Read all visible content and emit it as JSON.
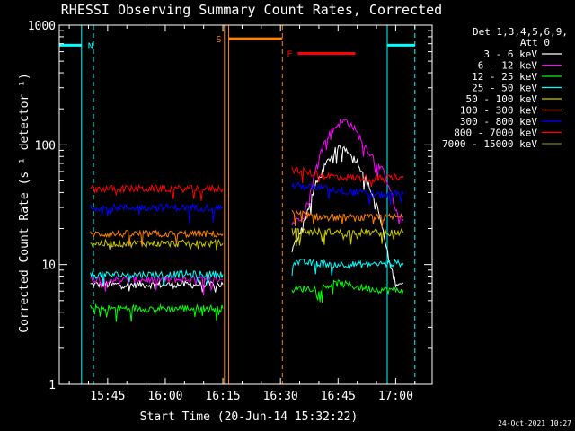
{
  "chart_data": {
    "type": "line",
    "title": "RHESSI Observing Summary Count Rates, Corrected",
    "xlabel": "Start Time (20-Jun-14 15:32:22)",
    "ylabel": "Corrected Count Rate (s⁻¹ detector⁻¹)",
    "yscale": "log",
    "ylim": [
      1,
      1000
    ],
    "xlim_minutes_after_1530": [
      2.4,
      99.5
    ],
    "x_ticks": [
      {
        "label": "15:45",
        "t": 15
      },
      {
        "label": "16:00",
        "t": 30
      },
      {
        "label": "16:15",
        "t": 45
      },
      {
        "label": "16:30",
        "t": 60
      },
      {
        "label": "16:45",
        "t": 75
      },
      {
        "label": "17:00",
        "t": 90
      }
    ],
    "y_ticks": [
      {
        "label": "1",
        "v": 1
      },
      {
        "label": "10",
        "v": 10
      },
      {
        "label": "100",
        "v": 100
      },
      {
        "label": "1000",
        "v": 1000
      }
    ],
    "legend_header": [
      "Det 1,3,4,5,6,9,",
      "Att 0"
    ],
    "legend_position": "right",
    "series": [
      {
        "name": "3 - 6 keV",
        "color": "#ffffff",
        "segments": [
          [
            [
              10.5,
              6.8
            ],
            [
              45,
              6.8
            ]
          ],
          [
            [
              63,
              13
            ],
            [
              66,
              22
            ],
            [
              69,
              45
            ],
            [
              72,
              70
            ],
            [
              74,
              88
            ],
            [
              76,
              97
            ],
            [
              78,
              88
            ],
            [
              80,
              72
            ],
            [
              82,
              55
            ],
            [
              84,
              38
            ],
            [
              85.5,
              28
            ],
            [
              87,
              17
            ],
            [
              88.5,
              10
            ],
            [
              90,
              7
            ],
            [
              92,
              7
            ]
          ]
        ]
      },
      {
        "name": "6 - 12 keV",
        "color": "#ff00ff",
        "segments": [
          [
            [
              10.5,
              7.5
            ],
            [
              45,
              7.5
            ]
          ],
          [
            [
              63,
              22
            ],
            [
              66,
              26
            ],
            [
              68,
              42
            ],
            [
              70,
              80
            ],
            [
              72,
              115
            ],
            [
              75,
              150
            ],
            [
              77,
              160
            ],
            [
              79,
              140
            ],
            [
              81,
              110
            ],
            [
              83,
              88
            ],
            [
              85,
              72
            ],
            [
              87,
              58
            ],
            [
              88.5,
              44
            ],
            [
              90,
              28
            ],
            [
              92,
              24
            ]
          ]
        ]
      },
      {
        "name": "12 - 25 keV",
        "color": "#00ff00",
        "segments": [
          [
            [
              10.5,
              4.3
            ],
            [
              45,
              4.3
            ]
          ],
          [
            [
              63,
              6.2
            ],
            [
              70,
              6.4
            ],
            [
              75,
              7.0
            ],
            [
              80,
              6.5
            ],
            [
              85,
              6.2
            ],
            [
              92,
              6.1
            ]
          ]
        ]
      },
      {
        "name": "25 - 50 keV",
        "color": "#00ffff",
        "segments": [
          [
            [
              10.5,
              8.2
            ],
            [
              45,
              8.3
            ]
          ],
          [
            [
              63,
              10.5
            ],
            [
              70,
              10.2
            ],
            [
              80,
              10.0
            ],
            [
              92,
              10.3
            ]
          ]
        ]
      },
      {
        "name": "50 - 100 keV",
        "color": "#cccc00",
        "segments": [
          [
            [
              10.5,
              15
            ],
            [
              45,
              15
            ]
          ],
          [
            [
              63,
              19
            ],
            [
              70,
              18.8
            ],
            [
              80,
              18.5
            ],
            [
              92,
              18.5
            ]
          ]
        ]
      },
      {
        "name": "100 - 300 keV",
        "color": "#ff8000",
        "segments": [
          [
            [
              10.5,
              18
            ],
            [
              45,
              18
            ]
          ],
          [
            [
              63,
              27
            ],
            [
              70,
              25
            ],
            [
              80,
              24.5
            ],
            [
              92,
              25
            ]
          ]
        ]
      },
      {
        "name": "300 - 800 keV",
        "color": "#0000ff",
        "segments": [
          [
            [
              10.5,
              30
            ],
            [
              45,
              30
            ]
          ],
          [
            [
              63,
              46
            ],
            [
              68,
              44
            ],
            [
              72,
              43
            ],
            [
              80,
              40
            ],
            [
              86,
              38
            ],
            [
              92,
              39
            ]
          ]
        ]
      },
      {
        "name": "800 - 7000 keV",
        "color": "#ff0000",
        "segments": [
          [
            [
              10.5,
              43
            ],
            [
              45,
              43
            ]
          ],
          [
            [
              63,
              63
            ],
            [
              66,
              60
            ],
            [
              70,
              56
            ],
            [
              75,
              54
            ],
            [
              80,
              53
            ],
            [
              86,
              52
            ],
            [
              92,
              55
            ]
          ]
        ]
      },
      {
        "name": "7000 - 15000 keV",
        "color": "#808000",
        "segments": []
      }
    ],
    "attenuator_bars": [
      {
        "label": "N",
        "color": "#00ffff",
        "t0": 2.4,
        "t1": 8.2,
        "v": 680,
        "lines": [
          {
            "t": 8.2,
            "style": "solid"
          },
          {
            "t": 11.3,
            "style": "dashed"
          }
        ]
      },
      {
        "label": "S",
        "color": "#ff8000",
        "t0": 46.5,
        "t1": 60.5,
        "v": 770,
        "lines": [
          {
            "t": 45.4,
            "style": "solid"
          },
          {
            "t": 46.5,
            "style": "solid"
          },
          {
            "t": 60.5,
            "style": "dashed"
          }
        ]
      },
      {
        "label": "F",
        "color": "#ff0000",
        "t0": 64.5,
        "t1": 79.5,
        "v": 580,
        "lines": []
      },
      {
        "label": "",
        "color": "#00ffff",
        "t0": 87.8,
        "t1": 95.0,
        "v": 680,
        "lines": [
          {
            "t": 87.8,
            "style": "solid"
          },
          {
            "t": 95.0,
            "style": "dashed"
          }
        ]
      }
    ]
  },
  "timestamp": "24-Oct-2021 10:27"
}
